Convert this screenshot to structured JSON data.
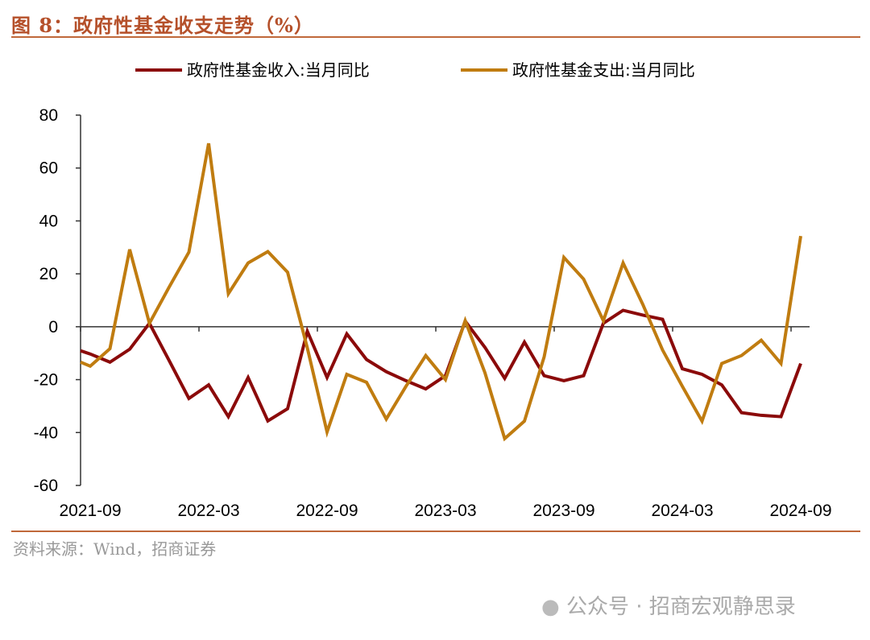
{
  "title": "图 8：政府性基金收支走势（%）",
  "source": "资料来源：Wind，招商证券",
  "watermark": "公众号 · 招商宏观静思录",
  "chart_data": {
    "type": "line",
    "title": "",
    "xlabel": "",
    "ylabel": "",
    "ylim": [
      -60,
      80
    ],
    "yticks": [
      "80",
      "60",
      "40",
      "20",
      "0",
      "-20",
      "-40",
      "-60"
    ],
    "xticks": [
      "2021-09",
      "2022-03",
      "2022-09",
      "2023-03",
      "2023-09",
      "2024-03",
      "2024-09"
    ],
    "x_start": "2021-09",
    "x_end": "2024-09",
    "legend": "top",
    "grid": false,
    "series": [
      {
        "name": "政府性基金收入:当月同比",
        "color": "#8b0a0a",
        "values": [
          -10.3,
          -13.4,
          -8.5,
          1.3,
          -12.8,
          -27.1,
          -22,
          -34,
          -19.2,
          -35.6,
          -31,
          -1.7,
          -19.2,
          -2.7,
          -12.4,
          -17,
          -20.4,
          -23.5,
          -18.5,
          2.1,
          -7.8,
          -19.5,
          -5.8,
          -18.5,
          -20.4,
          -18.5,
          1.3,
          6.2,
          4.4,
          2.8,
          -15.9,
          -18,
          -22,
          -32.5,
          -33.5,
          -34,
          -13.9
        ]
      },
      {
        "name": "政府性基金支出:当月同比",
        "color": "#c07c10",
        "values": [
          -14.9,
          -8.3,
          29.2,
          1.3,
          15,
          28.2,
          69.3,
          12.5,
          24.1,
          28.4,
          20.6,
          -8,
          -39.8,
          -18,
          -21,
          -34.9,
          -22.5,
          -10.9,
          -20,
          2.3,
          -17.4,
          -42.3,
          -35.7,
          -11.4,
          26.2,
          18,
          2.3,
          24.1,
          8.4,
          -8.8,
          -22.5,
          -35.7,
          -13.9,
          -10.9,
          -5.1,
          -13.9,
          34.3
        ]
      }
    ]
  }
}
